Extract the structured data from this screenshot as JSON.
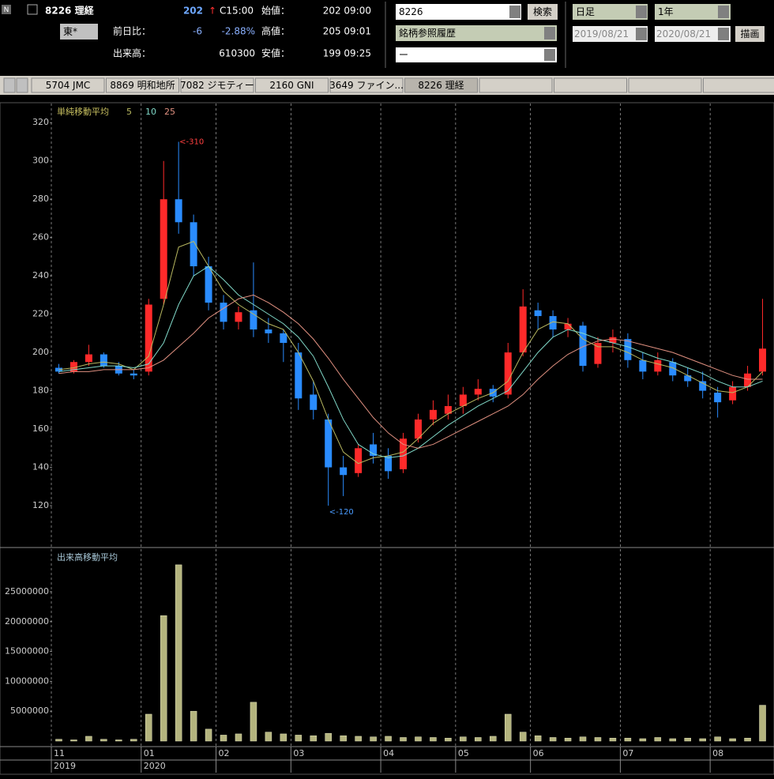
{
  "header": {
    "market_icon": "N",
    "code_name": "8226 理経",
    "price": "202",
    "arrow": "↑",
    "time": "C15:00",
    "exchange": "東*",
    "open_label": "始値：",
    "open_value": "202 09:00",
    "change_label": "前日比：",
    "change": "-6",
    "change_pct": "-2.88%",
    "high_label": "高値：",
    "high_value": "205 09:01",
    "volume_label": "出来高：",
    "volume_value": "610300",
    "low_label": "安値：",
    "low_value": "199 09:25"
  },
  "controls": {
    "code_input": "8226",
    "search_button": "検索",
    "history_select": "銘柄参照履歴",
    "sub_select": "ー",
    "period_select": "日足",
    "range_select": "1年",
    "date_from": "2019/08/21",
    "date_to": "2020/08/21",
    "draw_button": "描画"
  },
  "tabs": [
    "5704 JMC",
    "8869 明和地所",
    "7082 ジモティー",
    "2160 GNI",
    "3649 ファイン...",
    "8226 理経"
  ],
  "chart_data": {
    "type": "candlestick",
    "title": "単純移動平均",
    "categories": [
      "11",
      null,
      null,
      null,
      null,
      null,
      "01",
      null,
      null,
      null,
      null,
      "02",
      null,
      null,
      null,
      null,
      "03",
      null,
      null,
      null,
      null,
      null,
      "04",
      null,
      null,
      null,
      null,
      "05",
      null,
      null,
      null,
      null,
      "06",
      null,
      null,
      null,
      null,
      null,
      "07",
      null,
      null,
      null,
      null,
      null,
      "08",
      null,
      null,
      null
    ],
    "open": [
      192,
      190,
      195,
      199,
      193,
      189,
      190,
      228,
      280,
      268,
      245,
      226,
      216,
      222,
      212,
      210,
      200,
      178,
      165,
      140,
      137,
      152,
      146,
      139,
      155,
      165,
      168,
      172,
      178,
      181,
      178,
      200,
      222,
      219,
      212,
      214,
      194,
      205,
      207,
      196,
      190,
      195,
      188,
      185,
      179,
      175,
      182,
      190
    ],
    "high": [
      194,
      196,
      204,
      200,
      195,
      191,
      228,
      300,
      310,
      272,
      250,
      230,
      224,
      247,
      218,
      212,
      205,
      185,
      168,
      146,
      152,
      158,
      150,
      158,
      168,
      175,
      178,
      182,
      186,
      183,
      205,
      233,
      226,
      222,
      218,
      216,
      208,
      212,
      210,
      200,
      200,
      197,
      192,
      190,
      182,
      185,
      193,
      228
    ],
    "low": [
      189,
      189,
      193,
      192,
      188,
      186,
      188,
      225,
      262,
      240,
      222,
      212,
      212,
      208,
      205,
      195,
      170,
      165,
      120,
      125,
      135,
      142,
      134,
      137,
      153,
      162,
      165,
      168,
      175,
      174,
      176,
      198,
      212,
      208,
      208,
      190,
      192,
      200,
      192,
      186,
      188,
      185,
      182,
      176,
      166,
      173,
      180,
      188
    ],
    "close": [
      190,
      195,
      199,
      193,
      189,
      188,
      225,
      280,
      268,
      245,
      226,
      216,
      221,
      212,
      210,
      205,
      176,
      170,
      140,
      136,
      150,
      146,
      138,
      155,
      165,
      170,
      172,
      178,
      181,
      177,
      200,
      224,
      219,
      212,
      215,
      193,
      205,
      208,
      196,
      190,
      196,
      188,
      185,
      180,
      174,
      182,
      189,
      202
    ],
    "up_color": "#ff2a2a",
    "down_color": "#2a8cff",
    "ylim": [
      100,
      330
    ],
    "yticks": [
      120,
      140,
      160,
      180,
      200,
      220,
      240,
      260,
      280,
      300,
      320
    ],
    "series": [
      {
        "name": "5",
        "color": "#b8b860",
        "values": [
          191,
          192,
          194,
          195,
          194,
          191,
          198,
          225,
          255,
          258,
          245,
          232,
          225,
          220,
          215,
          212,
          200,
          185,
          165,
          148,
          142,
          145,
          146,
          148,
          155,
          163,
          168,
          172,
          176,
          179,
          185,
          200,
          212,
          216,
          215,
          207,
          203,
          203,
          200,
          196,
          194,
          192,
          188,
          184,
          180,
          179,
          182,
          190
        ]
      },
      {
        "name": "10",
        "color": "#80d8c8",
        "values": [
          190,
          191,
          192,
          193,
          193,
          192,
          194,
          205,
          225,
          240,
          245,
          238,
          230,
          225,
          220,
          215,
          208,
          198,
          182,
          165,
          152,
          147,
          145,
          146,
          150,
          156,
          162,
          167,
          172,
          176,
          180,
          190,
          200,
          208,
          212,
          210,
          207,
          205,
          203,
          200,
          197,
          195,
          192,
          189,
          185,
          182,
          182,
          185
        ]
      },
      {
        "name": "25",
        "color": "#e09080",
        "values": [
          189,
          190,
          190,
          191,
          191,
          191,
          192,
          196,
          203,
          210,
          218,
          223,
          228,
          230,
          226,
          221,
          215,
          207,
          197,
          186,
          176,
          166,
          158,
          152,
          150,
          152,
          156,
          160,
          164,
          168,
          172,
          178,
          186,
          193,
          199,
          203,
          206,
          207,
          206,
          204,
          202,
          200,
          197,
          194,
          191,
          188,
          186,
          186
        ]
      }
    ],
    "annotations": [
      {
        "text": "<-310",
        "color": "#ff4040"
      },
      {
        "text": "<-120",
        "color": "#4a9cff"
      }
    ],
    "years": [
      "2019",
      "2020"
    ],
    "volume": {
      "title": "出来高移動平均",
      "color": "#b4b47e",
      "ylim": [
        0,
        32000000
      ],
      "yticks": [
        5000000,
        10000000,
        15000000,
        20000000,
        25000000
      ],
      "values": [
        300000,
        200000,
        800000,
        300000,
        200000,
        300000,
        4500000,
        21000000,
        29500000,
        5000000,
        2000000,
        1000000,
        1200000,
        6500000,
        1500000,
        1200000,
        1000000,
        900000,
        1300000,
        900000,
        800000,
        700000,
        800000,
        600000,
        700000,
        600000,
        500000,
        700000,
        600000,
        800000,
        4500000,
        1500000,
        900000,
        600000,
        500000,
        700000,
        600000,
        500000,
        500000,
        400000,
        600000,
        400000,
        500000,
        400000,
        700000,
        400000,
        500000,
        6000000
      ]
    }
  }
}
